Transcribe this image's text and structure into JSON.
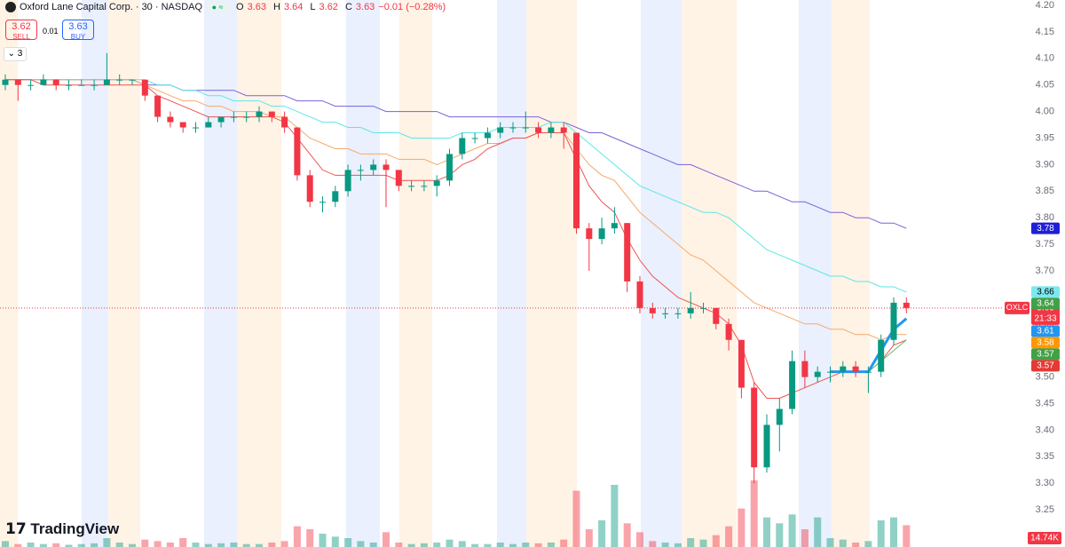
{
  "header": {
    "symbol_title": "Oxford Lane Capital Corp. · 30 · NASDAQ",
    "ohlc": [
      {
        "label": "O",
        "value": "3.63"
      },
      {
        "label": "H",
        "value": "3.64"
      },
      {
        "label": "L",
        "value": "3.62"
      },
      {
        "label": "C",
        "value": "3.63"
      }
    ],
    "change": "−0.01 (−0.28%)",
    "sell_price": "3.62",
    "sell_label": "SELL",
    "spread": "0.01",
    "buy_price": "3.63",
    "buy_label": "BUY",
    "indicator_count": "3",
    "logo": "TradingView"
  },
  "chart_data": {
    "type": "candlestick",
    "up_color": "#089981",
    "down_color": "#f23645",
    "ohlc": [
      [
        4.05,
        4.07,
        4.04,
        4.06
      ],
      [
        4.06,
        4.06,
        4.02,
        4.05
      ],
      [
        4.05,
        4.06,
        4.04,
        4.05
      ],
      [
        4.05,
        4.07,
        4.05,
        4.06
      ],
      [
        4.06,
        4.06,
        4.04,
        4.05
      ],
      [
        4.05,
        4.06,
        4.04,
        4.05
      ],
      [
        4.05,
        4.06,
        4.05,
        4.05
      ],
      [
        4.05,
        4.06,
        4.04,
        4.05
      ],
      [
        4.05,
        4.11,
        4.05,
        4.06
      ],
      [
        4.06,
        4.07,
        4.05,
        4.06
      ],
      [
        4.06,
        4.06,
        4.05,
        4.06
      ],
      [
        4.06,
        4.06,
        4.02,
        4.03
      ],
      [
        4.03,
        4.03,
        3.98,
        3.99
      ],
      [
        3.99,
        4.0,
        3.97,
        3.98
      ],
      [
        3.98,
        3.98,
        3.96,
        3.97
      ],
      [
        3.97,
        3.98,
        3.96,
        3.97
      ],
      [
        3.97,
        3.99,
        3.97,
        3.98
      ],
      [
        3.98,
        3.99,
        3.97,
        3.99
      ],
      [
        3.99,
        4.0,
        3.98,
        3.99
      ],
      [
        3.99,
        4.0,
        3.98,
        3.99
      ],
      [
        3.99,
        4.01,
        3.98,
        4.0
      ],
      [
        4.0,
        4.0,
        3.98,
        3.99
      ],
      [
        3.99,
        4.0,
        3.96,
        3.97
      ],
      [
        3.97,
        3.97,
        3.87,
        3.88
      ],
      [
        3.88,
        3.89,
        3.82,
        3.83
      ],
      [
        3.83,
        3.84,
        3.81,
        3.83
      ],
      [
        3.83,
        3.86,
        3.82,
        3.85
      ],
      [
        3.85,
        3.9,
        3.84,
        3.89
      ],
      [
        3.89,
        3.9,
        3.87,
        3.89
      ],
      [
        3.89,
        3.91,
        3.88,
        3.9
      ],
      [
        3.9,
        3.91,
        3.82,
        3.89
      ],
      [
        3.89,
        3.89,
        3.85,
        3.86
      ],
      [
        3.86,
        3.87,
        3.85,
        3.86
      ],
      [
        3.86,
        3.87,
        3.85,
        3.86
      ],
      [
        3.86,
        3.88,
        3.84,
        3.87
      ],
      [
        3.87,
        3.93,
        3.86,
        3.92
      ],
      [
        3.92,
        3.96,
        3.91,
        3.95
      ],
      [
        3.95,
        3.96,
        3.94,
        3.95
      ],
      [
        3.95,
        3.97,
        3.94,
        3.96
      ],
      [
        3.96,
        3.98,
        3.95,
        3.97
      ],
      [
        3.97,
        3.98,
        3.96,
        3.97
      ],
      [
        3.97,
        4.0,
        3.96,
        3.97
      ],
      [
        3.97,
        3.98,
        3.95,
        3.96
      ],
      [
        3.96,
        3.98,
        3.95,
        3.97
      ],
      [
        3.97,
        3.98,
        3.93,
        3.96
      ],
      [
        3.96,
        3.96,
        3.77,
        3.78
      ],
      [
        3.78,
        3.79,
        3.7,
        3.76
      ],
      [
        3.76,
        3.8,
        3.75,
        3.78
      ],
      [
        3.78,
        3.82,
        3.77,
        3.79
      ],
      [
        3.79,
        3.79,
        3.66,
        3.68
      ],
      [
        3.68,
        3.69,
        3.62,
        3.63
      ],
      [
        3.63,
        3.64,
        3.61,
        3.62
      ],
      [
        3.62,
        3.63,
        3.61,
        3.62
      ],
      [
        3.62,
        3.63,
        3.61,
        3.62
      ],
      [
        3.62,
        3.66,
        3.61,
        3.63
      ],
      [
        3.63,
        3.64,
        3.62,
        3.63
      ],
      [
        3.63,
        3.63,
        3.59,
        3.6
      ],
      [
        3.6,
        3.61,
        3.55,
        3.57
      ],
      [
        3.57,
        3.57,
        3.46,
        3.48
      ],
      [
        3.48,
        3.49,
        3.3,
        3.33
      ],
      [
        3.33,
        3.43,
        3.32,
        3.41
      ],
      [
        3.41,
        3.46,
        3.36,
        3.44
      ],
      [
        3.44,
        3.55,
        3.43,
        3.53
      ],
      [
        3.53,
        3.55,
        3.48,
        3.5
      ],
      [
        3.5,
        3.52,
        3.49,
        3.51
      ],
      [
        3.51,
        3.52,
        3.49,
        3.51
      ],
      [
        3.51,
        3.53,
        3.5,
        3.52
      ],
      [
        3.52,
        3.53,
        3.5,
        3.51
      ],
      [
        3.51,
        3.52,
        3.47,
        3.51
      ],
      [
        3.51,
        3.58,
        3.5,
        3.57
      ],
      [
        3.57,
        3.65,
        3.56,
        3.64
      ],
      [
        3.64,
        3.65,
        3.62,
        3.63
      ]
    ],
    "volume": [
      4000,
      2000,
      3000,
      2000,
      2500,
      1500,
      2000,
      2500,
      6000,
      3000,
      2000,
      5000,
      4000,
      3000,
      6000,
      3000,
      2000,
      2500,
      3000,
      2000,
      2000,
      3000,
      4000,
      14000,
      12000,
      9000,
      7000,
      6000,
      4000,
      3000,
      10000,
      3000,
      2000,
      2500,
      3000,
      5000,
      4000,
      2000,
      2000,
      3000,
      2000,
      3000,
      2500,
      3000,
      5000,
      38000,
      12000,
      18000,
      42000,
      16000,
      10000,
      4000,
      3000,
      2500,
      6000,
      5000,
      8000,
      14000,
      26000,
      45000,
      20000,
      16000,
      22000,
      12000,
      20000,
      6000,
      5000,
      3000,
      4000,
      18000,
      20000,
      14740
    ],
    "volume_last_label": "14.74K",
    "series": [
      {
        "color": "#7b61d9",
        "width": 1,
        "values": [
          4.06,
          4.06,
          4.06,
          4.06,
          4.06,
          4.06,
          4.06,
          4.06,
          4.06,
          4.06,
          4.06,
          4.05,
          4.05,
          4.05,
          4.04,
          4.04,
          4.04,
          4.04,
          4.04,
          4.03,
          4.03,
          4.03,
          4.03,
          4.02,
          4.02,
          4.02,
          4.01,
          4.01,
          4.01,
          4.01,
          4.0,
          4.0,
          4.0,
          4.0,
          4.0,
          3.99,
          3.99,
          3.99,
          3.99,
          3.99,
          3.99,
          3.99,
          3.99,
          3.98,
          3.98,
          3.97,
          3.96,
          3.96,
          3.95,
          3.94,
          3.93,
          3.92,
          3.91,
          3.9,
          3.9,
          3.89,
          3.88,
          3.87,
          3.86,
          3.85,
          3.85,
          3.84,
          3.83,
          3.83,
          3.82,
          3.81,
          3.81,
          3.8,
          3.8,
          3.79,
          3.79,
          3.78
        ]
      },
      {
        "color": "#5ee6e6",
        "width": 1,
        "values": [
          4.06,
          4.06,
          4.06,
          4.06,
          4.06,
          4.06,
          4.06,
          4.06,
          4.06,
          4.06,
          4.06,
          4.06,
          4.05,
          4.05,
          4.04,
          4.04,
          4.03,
          4.03,
          4.02,
          4.02,
          4.02,
          4.01,
          4.01,
          4.0,
          3.99,
          3.98,
          3.98,
          3.97,
          3.97,
          3.96,
          3.96,
          3.96,
          3.95,
          3.95,
          3.95,
          3.95,
          3.96,
          3.96,
          3.96,
          3.97,
          3.97,
          3.97,
          3.97,
          3.98,
          3.98,
          3.96,
          3.94,
          3.92,
          3.9,
          3.88,
          3.86,
          3.85,
          3.84,
          3.83,
          3.82,
          3.81,
          3.81,
          3.8,
          3.78,
          3.76,
          3.74,
          3.73,
          3.72,
          3.71,
          3.7,
          3.69,
          3.69,
          3.68,
          3.68,
          3.67,
          3.67,
          3.66
        ]
      },
      {
        "color": "#f5a96b",
        "width": 1,
        "values": [
          4.06,
          4.06,
          4.06,
          4.06,
          4.06,
          4.06,
          4.06,
          4.06,
          4.06,
          4.06,
          4.06,
          4.05,
          4.04,
          4.03,
          4.02,
          4.02,
          4.01,
          4.01,
          4.0,
          4.0,
          4.0,
          3.99,
          3.99,
          3.97,
          3.95,
          3.94,
          3.93,
          3.93,
          3.92,
          3.92,
          3.92,
          3.91,
          3.91,
          3.91,
          3.9,
          3.91,
          3.92,
          3.93,
          3.94,
          3.94,
          3.95,
          3.95,
          3.96,
          3.96,
          3.96,
          3.93,
          3.9,
          3.88,
          3.87,
          3.84,
          3.81,
          3.79,
          3.77,
          3.75,
          3.73,
          3.72,
          3.7,
          3.68,
          3.66,
          3.64,
          3.63,
          3.62,
          3.61,
          3.6,
          3.6,
          3.59,
          3.59,
          3.58,
          3.58,
          3.57,
          3.58,
          3.58
        ]
      },
      {
        "color": "#ef5350",
        "width": 1,
        "values": [
          4.06,
          4.06,
          4.06,
          4.05,
          4.05,
          4.05,
          4.05,
          4.05,
          4.05,
          4.05,
          4.05,
          4.05,
          4.03,
          4.02,
          4.01,
          4.0,
          3.99,
          3.99,
          3.99,
          3.99,
          3.99,
          3.99,
          3.98,
          3.95,
          3.92,
          3.89,
          3.88,
          3.88,
          3.88,
          3.88,
          3.88,
          3.87,
          3.87,
          3.87,
          3.87,
          3.88,
          3.9,
          3.91,
          3.93,
          3.94,
          3.95,
          3.95,
          3.96,
          3.96,
          3.96,
          3.91,
          3.86,
          3.83,
          3.81,
          3.76,
          3.72,
          3.69,
          3.67,
          3.65,
          3.64,
          3.63,
          3.62,
          3.6,
          3.56,
          3.49,
          3.46,
          3.46,
          3.47,
          3.48,
          3.49,
          3.5,
          3.51,
          3.51,
          3.51,
          3.53,
          3.56,
          3.57
        ]
      },
      {
        "color": "#66bb6a",
        "width": 1,
        "values": [
          null,
          null,
          null,
          null,
          null,
          null,
          null,
          null,
          null,
          null,
          null,
          null,
          null,
          null,
          null,
          null,
          null,
          null,
          null,
          null,
          null,
          null,
          null,
          null,
          null,
          null,
          null,
          null,
          null,
          null,
          null,
          null,
          null,
          null,
          null,
          null,
          null,
          null,
          null,
          null,
          null,
          null,
          null,
          null,
          null,
          null,
          null,
          null,
          null,
          null,
          null,
          null,
          null,
          null,
          null,
          null,
          null,
          null,
          null,
          null,
          null,
          null,
          null,
          null,
          null,
          null,
          null,
          null,
          3.51,
          3.53,
          3.55,
          3.57
        ]
      },
      {
        "color": "#2196f3",
        "width": 3,
        "values": [
          null,
          null,
          null,
          null,
          null,
          null,
          null,
          null,
          null,
          null,
          null,
          null,
          null,
          null,
          null,
          null,
          null,
          null,
          null,
          null,
          null,
          null,
          null,
          null,
          null,
          null,
          null,
          null,
          null,
          null,
          null,
          null,
          null,
          null,
          null,
          null,
          null,
          null,
          null,
          null,
          null,
          null,
          null,
          null,
          null,
          null,
          null,
          null,
          null,
          null,
          null,
          null,
          null,
          null,
          null,
          null,
          null,
          null,
          null,
          null,
          null,
          null,
          null,
          null,
          null,
          3.51,
          3.51,
          3.51,
          3.51,
          3.55,
          3.59,
          3.61
        ]
      }
    ],
    "ylim": [
      3.18,
      4.21
    ],
    "yticks": [
      3.25,
      {
        "value": 3.3,
        "label": "3.30"
      },
      3.35,
      {
        "value": 3.4,
        "label": "3.40"
      },
      3.45,
      {
        "value": 3.5,
        "label": "3.50"
      },
      3.55,
      {
        "value": 3.6,
        "label": "3.60"
      },
      3.65,
      {
        "value": 3.7,
        "label": "3.70"
      },
      3.75,
      {
        "value": 3.8,
        "label": "3.80"
      },
      3.85,
      {
        "value": 3.9,
        "label": "3.90"
      },
      3.95,
      {
        "value": 4.0,
        "label": "4.00"
      },
      4.05,
      {
        "value": 4.1,
        "label": "4.10"
      },
      4.15,
      {
        "value": 4.2,
        "label": "4.20"
      }
    ],
    "current": {
      "symbol": "OXLC",
      "value": 3.63,
      "countdown": "21:33",
      "color": "#f23645"
    },
    "price_tags": [
      {
        "value": 3.78,
        "color": "#1f1fd6",
        "text_color": "#ffffff"
      },
      {
        "value": 3.66,
        "color": "#7ee8f0",
        "text_color": "#000000"
      },
      {
        "value": 3.64,
        "color": "#43a047",
        "text_color": "#ffffff"
      },
      {
        "value": 3.61,
        "color": "#2196f3",
        "text_color": "#ffffff"
      },
      {
        "value": 3.58,
        "color": "#ff9800",
        "text_color": "#ffffff"
      },
      {
        "value": 3.57,
        "color": "#43a047",
        "text_color": "#ffffff"
      },
      {
        "value": 3.57,
        "color": "#e53935",
        "text_color": "#ffffff"
      }
    ]
  }
}
